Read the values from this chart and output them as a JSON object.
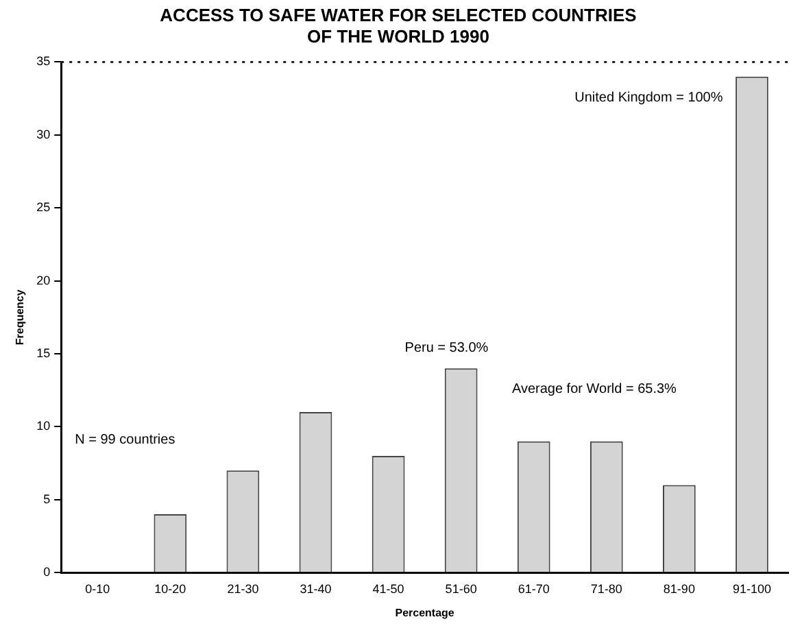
{
  "chart_data": {
    "type": "bar",
    "title": [
      "ACCESS TO SAFE WATER FOR SELECTED COUNTRIES",
      "OF THE WORLD 1990"
    ],
    "xlabel": "Percentage",
    "ylabel": "Frequency",
    "categories": [
      "0-10",
      "10-20",
      "21-30",
      "31-40",
      "41-50",
      "51-60",
      "61-70",
      "71-80",
      "81-90",
      "91-100"
    ],
    "values": [
      0,
      4,
      7,
      11,
      8,
      14,
      9,
      9,
      6,
      34
    ],
    "color": "#d4d4d4",
    "ylim": [
      0,
      35
    ],
    "yticks": [
      0,
      5,
      10,
      15,
      20,
      25,
      30,
      35
    ],
    "grid": false,
    "legend": false,
    "ref_lines": [
      {
        "axis": "y",
        "value": 35,
        "line_style": "dotted",
        "color": "#222222"
      }
    ],
    "annotations": [
      "N = 99 countries",
      "Peru = 53.0%",
      "Average for World = 65.3%",
      "United Kingdom = 100%"
    ]
  }
}
